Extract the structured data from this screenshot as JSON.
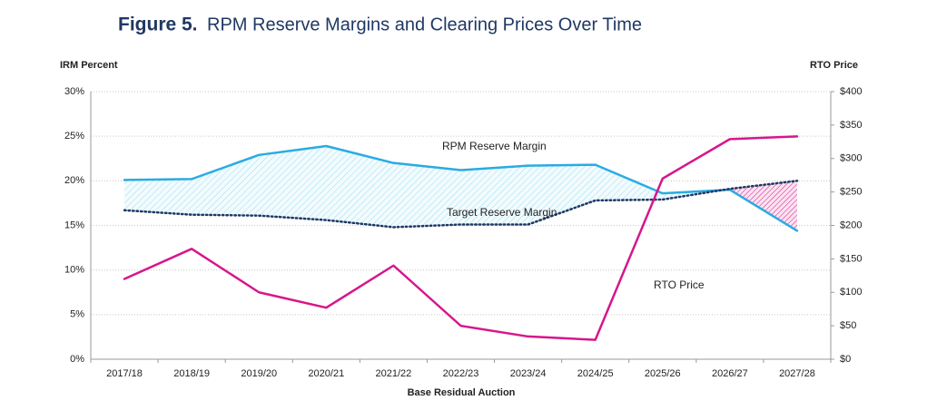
{
  "chart_data": {
    "type": "line",
    "title": "Figure 5.",
    "subtitle": "RPM Reserve Margins and Clearing Prices Over Time",
    "y_label": "IRM Percent",
    "y2_label": "RTO Price",
    "x_label": "Base Residual Auction",
    "categories": [
      "2017/18",
      "2018/19",
      "2019/20",
      "2020/21",
      "2021/22",
      "2022/23",
      "2023/24",
      "2024/25",
      "2025/26",
      "2026/27",
      "2027/28"
    ],
    "series": [
      {
        "name": "RPM Reserve Margin",
        "color": "#29abe2",
        "style": "solid",
        "values": [
          20.1,
          20.2,
          22.9,
          23.9,
          22.0,
          21.2,
          21.7,
          21.8,
          18.6,
          19.0,
          14.4
        ]
      },
      {
        "name": "Target Reserve Margin",
        "color": "#1f3864",
        "style": "dotted",
        "values": [
          16.7,
          16.2,
          16.1,
          15.6,
          14.8,
          15.1,
          15.1,
          17.8,
          17.9,
          19.1,
          20.0
        ]
      },
      {
        "name": "RTO Price",
        "color": "#d6168c",
        "style": "solid",
        "axis": "y2",
        "values": [
          120,
          165,
          100,
          77,
          140,
          50,
          34,
          29,
          270,
          329,
          333
        ]
      }
    ],
    "ylim": [
      0,
      30
    ],
    "yticks": [
      {
        "value": 0,
        "label": "0%"
      },
      {
        "value": 5,
        "label": "5%"
      },
      {
        "value": 10,
        "label": "10%"
      },
      {
        "value": 15,
        "label": "15%"
      },
      {
        "value": 20,
        "label": "20%"
      },
      {
        "value": 25,
        "label": "25%"
      },
      {
        "value": 30,
        "label": "30%"
      }
    ],
    "y2lim": [
      0,
      400
    ],
    "y2ticks": [
      {
        "value": 0,
        "label": "$0"
      },
      {
        "value": 50,
        "label": "$50"
      },
      {
        "value": 100,
        "label": "$100"
      },
      {
        "value": 150,
        "label": "$150"
      },
      {
        "value": 200,
        "label": "$200"
      },
      {
        "value": 250,
        "label": "$250"
      },
      {
        "value": 300,
        "label": "$300"
      },
      {
        "value": 350,
        "label": "$350"
      },
      {
        "value": 400,
        "label": "$400"
      }
    ],
    "grid": true
  }
}
